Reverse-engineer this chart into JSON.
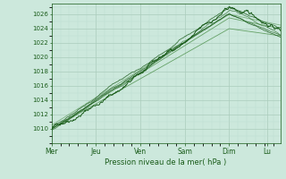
{
  "title": "Pression niveau de la mer( hPa )",
  "bg_color": "#cce8dc",
  "plot_bg_color": "#cce8dc",
  "grid_color_major": "#aaccbb",
  "grid_color_minor": "#bbddd0",
  "line_color_dark": "#1a5c1a",
  "line_color_light": "#5a9a5a",
  "x_labels": [
    "Mer",
    "Jeu",
    "Ven",
    "Sam",
    "Dim",
    "Lu"
  ],
  "x_ticks": [
    0,
    1,
    2,
    3,
    4,
    4.85
  ],
  "ylim": [
    1008.0,
    1027.5
  ],
  "yticks": [
    1010,
    1012,
    1014,
    1016,
    1018,
    1020,
    1022,
    1024,
    1026
  ],
  "xlim": [
    0,
    5.15
  ],
  "figsize": [
    3.2,
    2.0
  ],
  "dpi": 100
}
